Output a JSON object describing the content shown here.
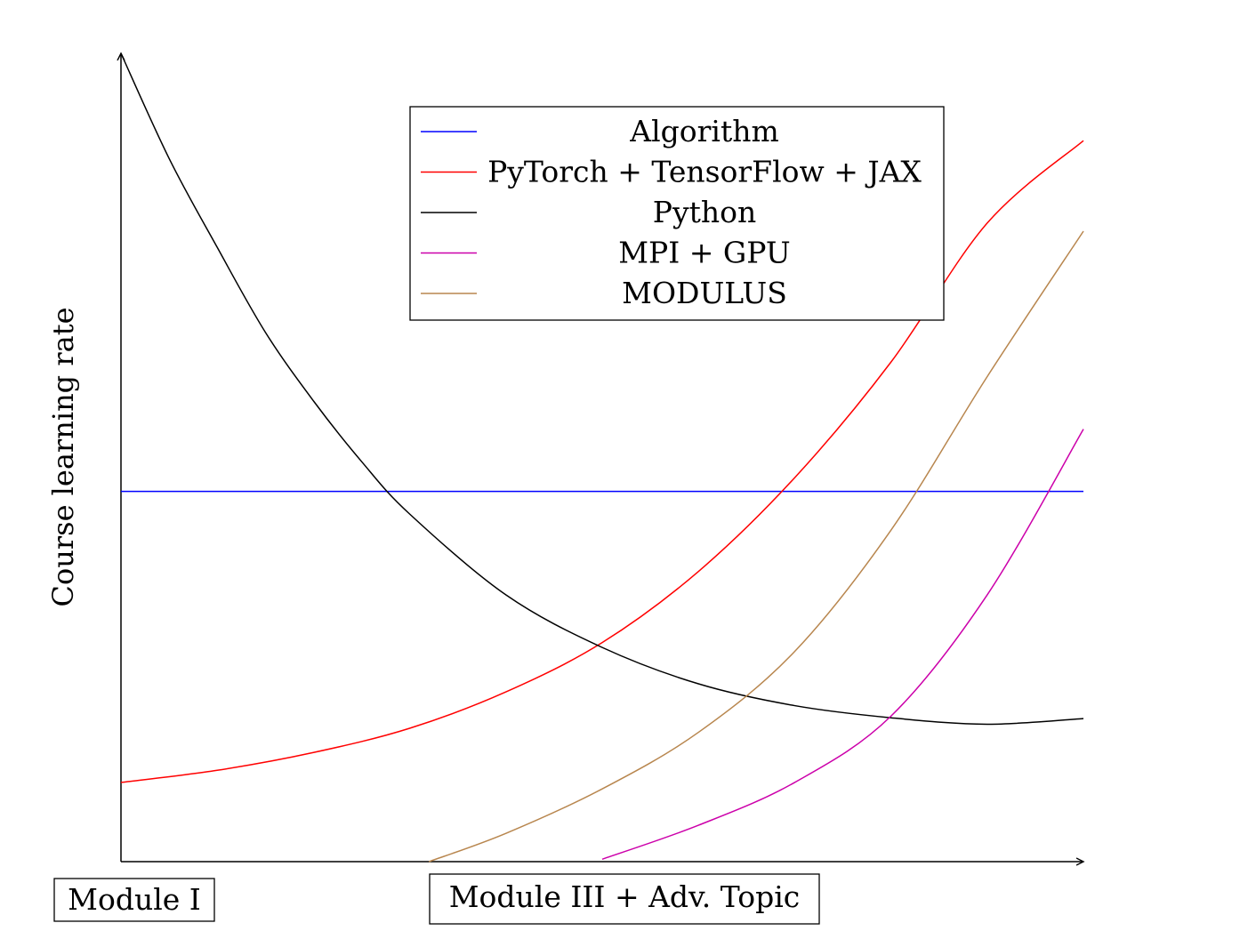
{
  "chart_data": {
    "type": "line",
    "title": "",
    "xlabel": "",
    "ylabel": "Course learning rate",
    "xlim": [
      0,
      1
    ],
    "ylim": [
      0,
      1
    ],
    "grid": false,
    "legend_position": "top-center",
    "series": [
      {
        "name": "Algorithm",
        "color": "#0000ff",
        "x": [
          0,
          0.1,
          0.2,
          0.3,
          0.4,
          0.5,
          0.6,
          0.7,
          0.8,
          0.9,
          1.0
        ],
        "y": [
          0.458,
          0.458,
          0.458,
          0.458,
          0.458,
          0.458,
          0.458,
          0.458,
          0.458,
          0.458,
          0.458
        ]
      },
      {
        "name": "PyTorch + TensorFlow + JAX",
        "color": "#ff0000",
        "x": [
          0,
          0.1,
          0.2,
          0.3,
          0.4,
          0.5,
          0.6,
          0.7,
          0.8,
          0.9,
          1.0
        ],
        "y": [
          0.098,
          0.113,
          0.135,
          0.165,
          0.21,
          0.271,
          0.359,
          0.475,
          0.618,
          0.79,
          0.892
        ]
      },
      {
        "name": "Python",
        "color": "#000000",
        "x": [
          0,
          0.05,
          0.1,
          0.15,
          0.2,
          0.25,
          0.3,
          0.4,
          0.5,
          0.6,
          0.7,
          0.8,
          0.9,
          1.0
        ],
        "y": [
          1.0,
          0.87,
          0.76,
          0.655,
          0.57,
          0.495,
          0.43,
          0.33,
          0.265,
          0.22,
          0.193,
          0.178,
          0.17,
          0.177
        ]
      },
      {
        "name": "MPI + GPU",
        "color": "#cc00aa",
        "x": [
          0.5,
          0.6,
          0.7,
          0.8,
          0.9,
          1.0
        ],
        "y": [
          0.003,
          0.045,
          0.098,
          0.18,
          0.33,
          0.535
        ]
      },
      {
        "name": "MODULUS",
        "color": "#b8864e",
        "x": [
          0.32,
          0.4,
          0.5,
          0.6,
          0.7,
          0.8,
          0.9,
          1.0
        ],
        "y": [
          0.0,
          0.035,
          0.09,
          0.16,
          0.26,
          0.41,
          0.6,
          0.78
        ]
      }
    ]
  },
  "annotations": {
    "left_box": "Module I",
    "mid_box": "Module III + Adv.  Topic"
  }
}
